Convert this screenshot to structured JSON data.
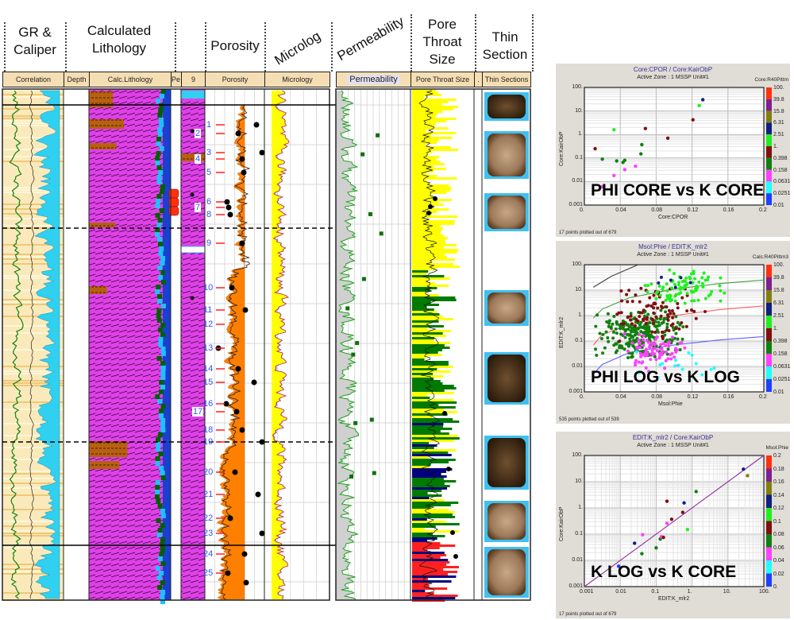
{
  "track_titles": {
    "gr_caliper": "GR &\nCaliper",
    "gr": "GR &",
    "caliper": "Caliper",
    "calc_lith_1": "Calculated",
    "calc_lith_2": "Lithology",
    "porosity": "Porosity",
    "microlog": "Microlog",
    "permeability": "Permeability",
    "pore_1": "Pore",
    "pore_2": "Throat",
    "pore_3": "Size",
    "thin_1": "Thin",
    "thin_2": "Section"
  },
  "header_cells": {
    "correlation": "Correlation",
    "depth": "Depth",
    "calc_lithology": "Calc.Lithology",
    "pe": "Pe",
    "nine": "9",
    "porosity": "Porosity",
    "micrology": "Micrology",
    "permeability": "Permeability",
    "pore_throat": "Pore Throat Size",
    "dot": ".",
    "thin_sections": "Thin Sections"
  },
  "depth_markers": [
    "1",
    "2",
    "3",
    "4",
    "5",
    "6",
    "7",
    "8",
    "9",
    "10",
    "11",
    "12",
    "13",
    "14",
    "15",
    "16",
    "17",
    "18",
    "19",
    "20",
    "21",
    "22",
    "23",
    "24",
    "25"
  ],
  "colors": {
    "lithology": "#e040e8",
    "porosity_fill": "#ff8000",
    "microlog_fill": "#ffff00",
    "pore_yellow": "#ffff00",
    "pore_green": "#007a00",
    "pore_navy": "#000080",
    "header_bg": "#f5deb3"
  },
  "chart_data": [
    {
      "type": "scatter",
      "title": "Core:CPOR / Core:KairObP",
      "subtitle": "Active Zone : 1  MSSP Unit#1",
      "caption": "PHI CORE vs K CORE",
      "xlabel": "Core:CPOR",
      "ylabel": "Core:KairObP",
      "xlim": [
        0,
        0.2
      ],
      "ylim": [
        0.001,
        100
      ],
      "yscale": "log",
      "x_ticks": [
        "0.",
        "0.04",
        "0.08",
        "0.12",
        "0.16",
        "0.2"
      ],
      "y_ticks": [
        "0.001",
        "0.01",
        "0.1",
        "1.",
        "10.",
        "100."
      ],
      "colorbar_title": "Core:R40Pittm",
      "colorbar_ticks": [
        "100.",
        "39.8",
        "15.8",
        "6.31",
        "2.51",
        "1.",
        "0.398",
        "0.158",
        "0.0631",
        "0.0251",
        "0.01"
      ],
      "colorbar_colors": [
        "#ff3010",
        "#802090",
        "#808010",
        "#102080",
        "#20f020",
        "#801010",
        "#108010",
        "#ff40ff",
        "#20ffff",
        "#2040ff"
      ],
      "footer": "17 points plotted out of 679",
      "points": [
        {
          "x": 0.012,
          "y": 0.25,
          "c": "#801010"
        },
        {
          "x": 0.02,
          "y": 0.09,
          "c": "#108010"
        },
        {
          "x": 0.02,
          "y": 0.006,
          "c": "#ff40ff"
        },
        {
          "x": 0.033,
          "y": 1.6,
          "c": "#20f020"
        },
        {
          "x": 0.033,
          "y": 0.018,
          "c": "#ff40ff"
        },
        {
          "x": 0.036,
          "y": 0.075,
          "c": "#108010"
        },
        {
          "x": 0.043,
          "y": 0.065,
          "c": "#108010"
        },
        {
          "x": 0.045,
          "y": 0.08,
          "c": "#108010"
        },
        {
          "x": 0.045,
          "y": 0.032,
          "c": "#ff40ff"
        },
        {
          "x": 0.057,
          "y": 0.045,
          "c": "#ff40ff"
        },
        {
          "x": 0.063,
          "y": 0.15,
          "c": "#108010"
        },
        {
          "x": 0.064,
          "y": 0.37,
          "c": "#108010"
        },
        {
          "x": 0.068,
          "y": 1.8,
          "c": "#801010"
        },
        {
          "x": 0.093,
          "y": 0.7,
          "c": "#801010"
        },
        {
          "x": 0.121,
          "y": 4.2,
          "c": "#801010"
        },
        {
          "x": 0.128,
          "y": 17,
          "c": "#20f020"
        },
        {
          "x": 0.132,
          "y": 30,
          "c": "#102080"
        }
      ]
    },
    {
      "type": "scatter",
      "title": "Msol:Phie / EDIT:K_mlr2",
      "subtitle": "Active Zone : 1  MSSP Unit#1",
      "caption": "PHI LOG vs K LOG",
      "xlabel": "Msol:Phie",
      "ylabel": "EDIT:K_mlr2",
      "xlim": [
        0,
        0.2
      ],
      "ylim": [
        0.001,
        100
      ],
      "yscale": "log",
      "x_ticks": [
        "0.",
        "0.04",
        "0.08",
        "0.12",
        "0.16",
        "0.2"
      ],
      "y_ticks": [
        "0.001",
        "0.01",
        "0.1",
        "1.",
        "10.",
        "100."
      ],
      "colorbar_title": "Calc:R40Pittm3",
      "colorbar_ticks": [
        "100.",
        "39.8",
        "15.8",
        "6.31",
        "2.51",
        "1.",
        "0.398",
        "0.158",
        "0.0631",
        "0.0251",
        "0.01"
      ],
      "colorbar_colors": [
        "#ff3010",
        "#802090",
        "#808010",
        "#102080",
        "#20f020",
        "#801010",
        "#108010",
        "#ff40ff",
        "#20ffff",
        "#2040ff"
      ],
      "footer": "535 points plotted out of 539",
      "trend_lines": [
        {
          "color": "#404040",
          "points": [
            [
              0.01,
              13
            ],
            [
              0.03,
              35
            ],
            [
              0.06,
              100
            ]
          ]
        },
        {
          "color": "#40a040",
          "points": [
            [
              0.01,
              0.8
            ],
            [
              0.02,
              1.8
            ],
            [
              0.05,
              5
            ],
            [
              0.1,
              11
            ],
            [
              0.15,
              18
            ],
            [
              0.2,
              25
            ]
          ]
        },
        {
          "color": "#ff6060",
          "points": [
            [
              0.01,
              0.07
            ],
            [
              0.02,
              0.18
            ],
            [
              0.05,
              0.45
            ],
            [
              0.1,
              1.0
            ],
            [
              0.15,
              1.7
            ],
            [
              0.2,
              2.4
            ]
          ]
        },
        {
          "color": "#6060ff",
          "points": [
            [
              0.01,
              0.005
            ],
            [
              0.02,
              0.012
            ],
            [
              0.05,
              0.035
            ],
            [
              0.1,
              0.07
            ],
            [
              0.15,
              0.11
            ],
            [
              0.2,
              0.15
            ]
          ]
        }
      ]
    },
    {
      "type": "scatter",
      "title": "EDIT:K_mlr2 / Core:KairObP",
      "subtitle": "Active Zone : 1  MSSP Unit#1",
      "caption": "K LOG vs K CORE",
      "xlabel": "EDIT:K_mlr2",
      "ylabel": "Core:KairObP",
      "xlim": [
        0.001,
        100
      ],
      "ylim": [
        0.001,
        100
      ],
      "xscale": "log",
      "yscale": "log",
      "x_ticks": [
        "0.001",
        "0.01",
        "0.1",
        "1.",
        "10.",
        "100."
      ],
      "y_ticks": [
        "0.001",
        "0.01",
        "0.1",
        "1.",
        "10.",
        "100."
      ],
      "colorbar_title": "Msol:Phie",
      "colorbar_ticks": [
        "0.2",
        "0.18",
        "0.16",
        "0.14",
        "0.12",
        "0.1",
        "0.08",
        "0.06",
        "0.04",
        "0.02",
        "0."
      ],
      "colorbar_colors": [
        "#ff3010",
        "#802090",
        "#808010",
        "#102080",
        "#20f020",
        "#801010",
        "#108010",
        "#ff40ff",
        "#20ffff",
        "#2040ff"
      ],
      "footer": "17 points plotted out of 679",
      "trend_lines": [
        {
          "color": "#9030a0",
          "points": [
            [
              0.001,
              0.001
            ],
            [
              100,
              100
            ]
          ]
        }
      ],
      "points": [
        {
          "x": 0.009,
          "y": 0.006,
          "c": "#2040ff"
        },
        {
          "x": 0.025,
          "y": 0.045,
          "c": "#102080"
        },
        {
          "x": 0.04,
          "y": 0.018,
          "c": "#108010"
        },
        {
          "x": 0.042,
          "y": 0.095,
          "c": "#ff40ff"
        },
        {
          "x": 0.1,
          "y": 0.03,
          "c": "#108010"
        },
        {
          "x": 0.13,
          "y": 0.065,
          "c": "#108010"
        },
        {
          "x": 0.14,
          "y": 0.08,
          "c": "#ff40ff"
        },
        {
          "x": 0.16,
          "y": 0.075,
          "c": "#801010"
        },
        {
          "x": 0.2,
          "y": 0.26,
          "c": "#ff40ff"
        },
        {
          "x": 0.2,
          "y": 1.8,
          "c": "#801010"
        },
        {
          "x": 0.27,
          "y": 0.37,
          "c": "#801010"
        },
        {
          "x": 0.55,
          "y": 0.68,
          "c": "#801010"
        },
        {
          "x": 0.6,
          "y": 1.55,
          "c": "#102080"
        },
        {
          "x": 0.75,
          "y": 0.15,
          "c": "#20f020"
        },
        {
          "x": 1.3,
          "y": 4.2,
          "c": "#108010"
        },
        {
          "x": 27,
          "y": 30,
          "c": "#102080"
        },
        {
          "x": 35,
          "y": 17,
          "c": "#808010"
        }
      ]
    }
  ]
}
